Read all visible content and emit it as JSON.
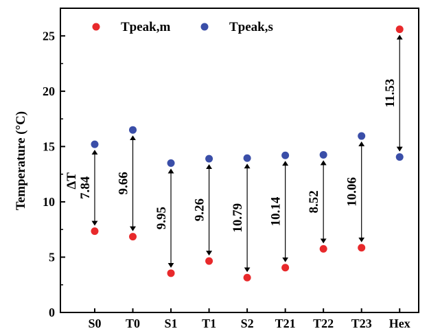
{
  "chart_data": {
    "type": "scatter",
    "title": "",
    "xlabel": "",
    "ylabel": "Temperature (°C)",
    "ylim": [
      0,
      27.5
    ],
    "yticks": [
      0,
      5,
      10,
      15,
      20,
      25
    ],
    "grid": false,
    "legend_position": "top-left",
    "categories": [
      "S0",
      "T0",
      "S1",
      "T1",
      "S2",
      "T21",
      "T22",
      "T23",
      "Hex"
    ],
    "series": [
      {
        "name": "Tpeak,m",
        "color": "#e8292b",
        "values": [
          7.35,
          6.85,
          3.55,
          4.65,
          3.15,
          4.05,
          5.75,
          5.85,
          25.6
        ]
      },
      {
        "name": "Tpeak,s",
        "color": "#3a4ea8",
        "values": [
          15.2,
          16.5,
          13.5,
          13.9,
          13.95,
          14.2,
          14.25,
          15.95,
          14.05
        ]
      }
    ],
    "annotations": [
      {
        "category": "S0",
        "prefix": "ΔT",
        "text": "7.84"
      },
      {
        "category": "T0",
        "text": "9.66"
      },
      {
        "category": "S1",
        "text": "9.95"
      },
      {
        "category": "T1",
        "text": "9.26"
      },
      {
        "category": "S2",
        "text": "10.79"
      },
      {
        "category": "T21",
        "text": "10.14"
      },
      {
        "category": "T22",
        "text": "8.52"
      },
      {
        "category": "T23",
        "text": "10.06"
      },
      {
        "category": "Hex",
        "text": "11.53"
      }
    ]
  }
}
